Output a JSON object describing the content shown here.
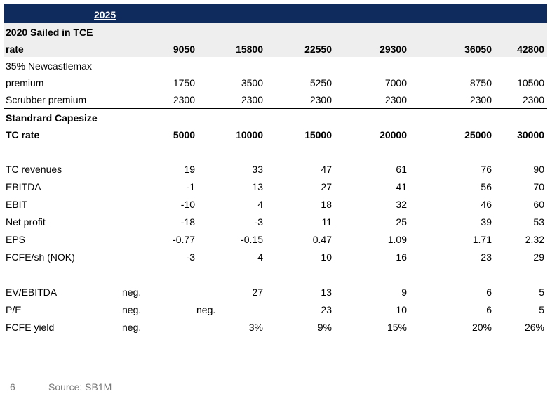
{
  "header": {
    "year": "2025"
  },
  "sections": {
    "sailed": {
      "label_line1": "2020 Sailed in TCE",
      "label_line2": "rate",
      "values": [
        "9050",
        "15800",
        "22550",
        "29300",
        "36050",
        "42800"
      ]
    },
    "newcastlemax": {
      "label_line1": "35% Newcastlemax",
      "label_line2": "premium",
      "values": [
        "1750",
        "3500",
        "5250",
        "7000",
        "8750",
        "10500"
      ]
    },
    "scrubber": {
      "label": "Scrubber premium",
      "values": [
        "2300",
        "2300",
        "2300",
        "2300",
        "2300",
        "2300"
      ]
    },
    "capesize": {
      "label_line1": "Standrard Capesize",
      "label_line2": "TC rate",
      "values": [
        "5000",
        "10000",
        "15000",
        "20000",
        "25000",
        "30000"
      ]
    }
  },
  "financials": [
    {
      "label": "TC revenues",
      "values": [
        "19",
        "33",
        "47",
        "61",
        "76",
        "90"
      ]
    },
    {
      "label": "EBITDA",
      "values": [
        "-1",
        "13",
        "27",
        "41",
        "56",
        "70"
      ]
    },
    {
      "label": "EBIT",
      "values": [
        "-10",
        "4",
        "18",
        "32",
        "46",
        "60"
      ]
    },
    {
      "label": "Net profit",
      "values": [
        "-18",
        "-3",
        "11",
        "25",
        "39",
        "53"
      ]
    },
    {
      "label": "EPS",
      "values": [
        "-0.77",
        "-0.15",
        "0.47",
        "1.09",
        "1.71",
        "2.32"
      ]
    },
    {
      "label": "FCFE/sh (NOK)",
      "values": [
        "-3",
        "4",
        "10",
        "16",
        "23",
        "29"
      ]
    }
  ],
  "valuation": [
    {
      "label": "EV/EBITDA",
      "neg": "neg.",
      "values": [
        "",
        "27",
        "13",
        "9",
        "6",
        "5"
      ]
    },
    {
      "label": "P/E",
      "neg": "neg.",
      "neg2": "neg.",
      "values": [
        "",
        "",
        "23",
        "10",
        "6",
        "5"
      ]
    },
    {
      "label": "FCFE yield",
      "neg": "neg.",
      "values": [
        "",
        "3%",
        "9%",
        "15%",
        "20%",
        "26%"
      ]
    }
  ],
  "footer": {
    "page": "6",
    "source": "Source: SB1M"
  }
}
